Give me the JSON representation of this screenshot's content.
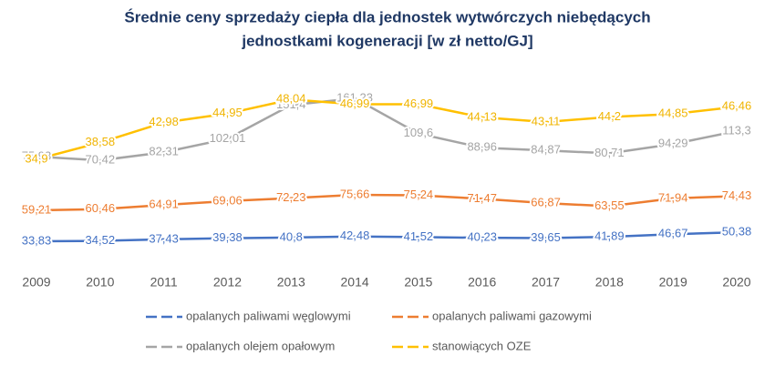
{
  "chart_data": {
    "type": "line",
    "title": [
      "Średnie ceny sprzedaży ciepła dla jednostek wytwórczych niebędących",
      "jednostkami kogeneracji [w zł netto/GJ]"
    ],
    "categories": [
      "2009",
      "2010",
      "2011",
      "2012",
      "2013",
      "2014",
      "2015",
      "2016",
      "2017",
      "2018",
      "2019",
      "2020"
    ],
    "series": [
      {
        "name": "opalanych paliwami węglowymi",
        "color": "#4472c4",
        "values": [
          33.83,
          34.52,
          37.43,
          39.38,
          40.8,
          42.48,
          41.52,
          40.23,
          39.65,
          41.89,
          46.67,
          50.38
        ],
        "value_labels": [
          "33,83",
          "34,52",
          "37,43",
          "39,38",
          "40,8",
          "42,48",
          "41,52",
          "40,23",
          "39,65",
          "41,89",
          "46,67",
          "50,38"
        ]
      },
      {
        "name": "opalanych paliwami gazowymi",
        "color": "#ed7d31",
        "values": [
          59.21,
          60.46,
          64.91,
          69.06,
          72.23,
          75.66,
          75.24,
          71.47,
          66.87,
          63.55,
          71.94,
          74.43
        ],
        "value_labels": [
          "59,21",
          "60,46",
          "64,91",
          "69,06",
          "72,23",
          "75,66",
          "75,24",
          "71,47",
          "66,87",
          "63,55",
          "71,94",
          "74,43"
        ]
      },
      {
        "name": "opalanych olejem opałowym",
        "color": "#a5a5a5",
        "values": [
          75.93,
          70.42,
          82.31,
          102.01,
          151.4,
          161.23,
          109.6,
          88.96,
          84.87,
          80.71,
          94.29,
          113.3
        ],
        "value_labels": [
          "75,93",
          "70,42",
          "82,31",
          "102,01",
          "151,4",
          "161,23",
          "109,6",
          "88,96",
          "84,87",
          "80,71",
          "94,29",
          "113,3"
        ]
      },
      {
        "name": "stanowiących OZE",
        "color": "#ffc000",
        "values": [
          34.9,
          38.58,
          42.98,
          44.95,
          48.04,
          46.99,
          46.99,
          44.13,
          43.11,
          44.2,
          44.85,
          46.46
        ],
        "value_labels": [
          "34,9",
          "38,58",
          "42,98",
          "44,95",
          "48,04",
          "46,99",
          "46,99",
          "44,13",
          "43,11",
          "44,2",
          "44,85",
          "46,46"
        ]
      }
    ]
  }
}
